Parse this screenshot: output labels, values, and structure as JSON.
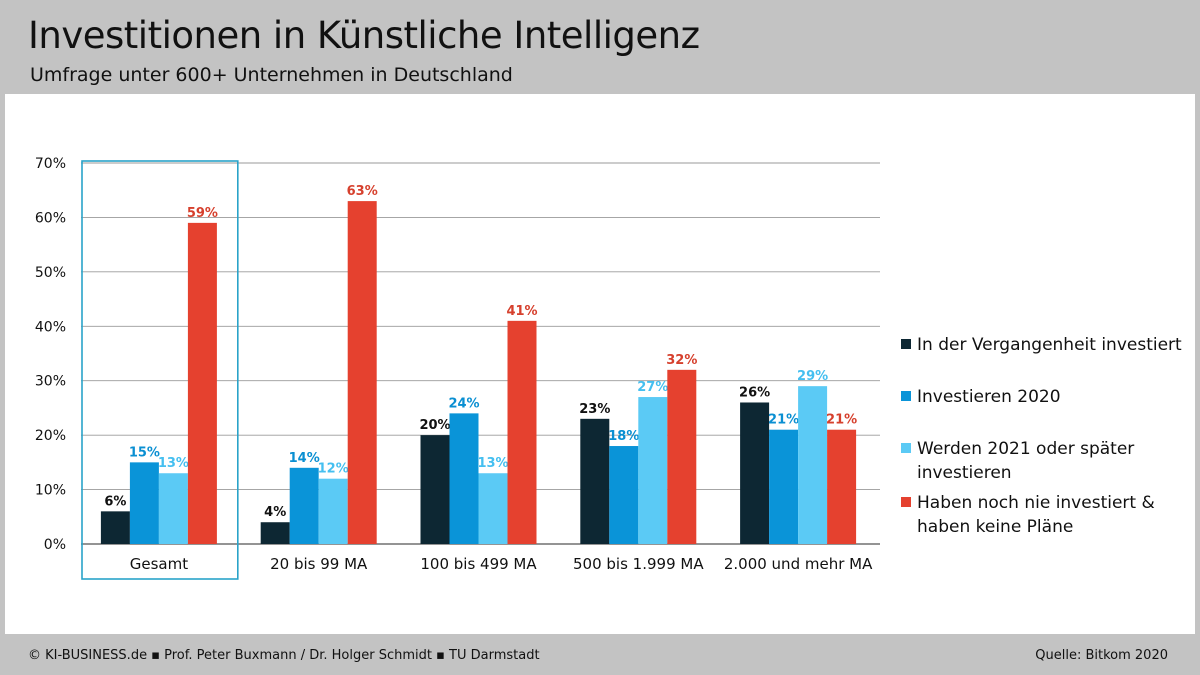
{
  "header": {
    "title": "Investitionen in Künstliche Intelligenz",
    "subtitle": "Umfrage unter 600+ Unternehmen in Deutschland"
  },
  "footer": {
    "left": "© KI-BUSINESS.de ▪ Prof. Peter Buxmann / Dr. Holger Schmidt ▪ TU Darmstadt",
    "right": "Quelle: Bitkom 2020"
  },
  "chart_data": {
    "type": "bar",
    "categories": [
      "Gesamt",
      "20 bis 99 MA",
      "100 bis 499 MA",
      "500 bis 1.999 MA",
      "2.000 und mehr MA"
    ],
    "highlighted_category": "Gesamt",
    "ylim": [
      0,
      70
    ],
    "yticks": [
      "0%",
      "10%",
      "20%",
      "30%",
      "40%",
      "50%",
      "60%",
      "70%"
    ],
    "grid": true,
    "legend_position": "right",
    "series": [
      {
        "name": "In der Vergangenheit investiert",
        "color": "#0d2733",
        "label_color": "#111111",
        "values": [
          6,
          4,
          20,
          23,
          26
        ],
        "labels": [
          "6%",
          "4%",
          "20%",
          "23%",
          "26%"
        ]
      },
      {
        "name": "Investieren 2020",
        "color": "#0a94d8",
        "label_color": "#0a8fd2",
        "values": [
          15,
          14,
          24,
          18,
          21
        ],
        "labels": [
          "15%",
          "14%",
          "24%",
          "18%",
          "21%"
        ]
      },
      {
        "name": "Werden 2021 oder später investieren",
        "color": "#5bcaf5",
        "label_color": "#45bff0",
        "values": [
          13,
          12,
          13,
          27,
          29
        ],
        "labels": [
          "13%",
          "12%",
          "13%",
          "27%",
          "29%"
        ]
      },
      {
        "name": "Haben noch nie investiert & haben keine Pläne",
        "color": "#e5412f",
        "label_color": "#d6402d",
        "values": [
          59,
          63,
          41,
          32,
          21
        ],
        "labels": [
          "59%",
          "63%",
          "41%",
          "32%",
          "21%"
        ]
      }
    ],
    "legend_lines": [
      [
        "In der Vergangenheit investiert"
      ],
      [
        "Investieren 2020"
      ],
      [
        "Werden 2021 oder später",
        "investieren"
      ],
      [
        "Haben noch nie investiert &",
        "haben keine Pläne"
      ]
    ]
  }
}
